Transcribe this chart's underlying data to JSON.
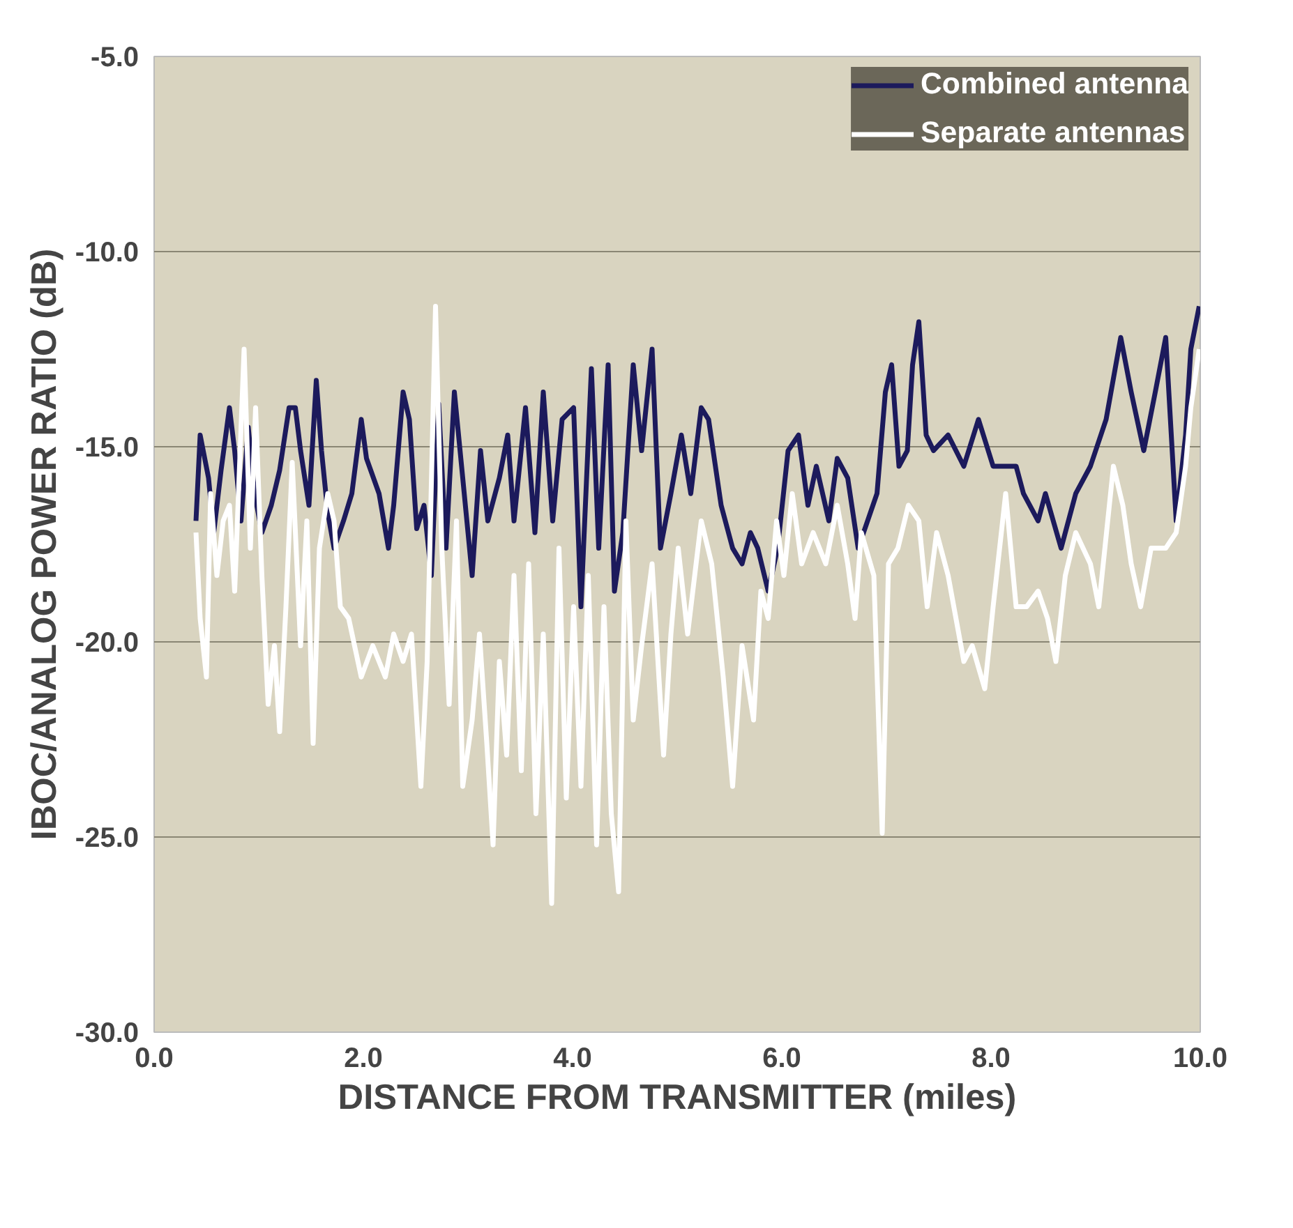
{
  "chart_data": {
    "type": "line",
    "xlabel": "DISTANCE FROM TRANSMITTER (miles)",
    "ylabel": "IBOC/ANALOG POWER RATIO (dB)",
    "xlim": [
      0,
      10
    ],
    "ylim": [
      -30,
      -5
    ],
    "xticks": [
      {
        "value": 0,
        "label": "0.0"
      },
      {
        "value": 2,
        "label": "2.0"
      },
      {
        "value": 4,
        "label": "4.0"
      },
      {
        "value": 6,
        "label": "6.0"
      },
      {
        "value": 8,
        "label": "8.0"
      },
      {
        "value": 10,
        "label": "10.0"
      }
    ],
    "yticks": [
      {
        "value": -30,
        "label": "-30.0"
      },
      {
        "value": -25,
        "label": "-25.0"
      },
      {
        "value": -20,
        "label": "-20.0"
      },
      {
        "value": -15,
        "label": "-15.0"
      },
      {
        "value": -10,
        "label": "-10.0"
      },
      {
        "value": -5,
        "label": "-5.0"
      }
    ],
    "grid": "y",
    "legend": "top right",
    "line_style": "solid",
    "marker": "none",
    "series": [
      {
        "name": "Combined antenna",
        "color": "#1c1a5c",
        "x": [
          0.4,
          0.44,
          0.52,
          0.57,
          0.64,
          0.72,
          0.77,
          0.83,
          0.9,
          0.96,
          1.03,
          1.12,
          1.2,
          1.29,
          1.35,
          1.4,
          1.48,
          1.55,
          1.6,
          1.66,
          1.72,
          1.81,
          1.89,
          1.98,
          2.03,
          2.15,
          2.24,
          2.29,
          2.38,
          2.44,
          2.51,
          2.58,
          2.65,
          2.72,
          2.79,
          2.87,
          2.95,
          3.04,
          3.12,
          3.19,
          3.3,
          3.38,
          3.44,
          3.55,
          3.64,
          3.72,
          3.81,
          3.9,
          4.01,
          4.08,
          4.18,
          4.25,
          4.34,
          4.4,
          4.48,
          4.58,
          4.66,
          4.76,
          4.84,
          4.94,
          5.04,
          5.13,
          5.23,
          5.3,
          5.42,
          5.53,
          5.62,
          5.7,
          5.77,
          5.87,
          5.96,
          6.06,
          6.16,
          6.25,
          6.33,
          6.45,
          6.53,
          6.63,
          6.73,
          6.82,
          6.91,
          6.99,
          7.05,
          7.12,
          7.2,
          7.25,
          7.31,
          7.38,
          7.45,
          7.59,
          7.74,
          7.88,
          8.02,
          8.24,
          8.31,
          8.45,
          8.52,
          8.67,
          8.81,
          8.95,
          9.1,
          9.24,
          9.34,
          9.46,
          9.57,
          9.67,
          9.77,
          9.86,
          9.91,
          9.99
        ],
        "values": [
          -16.9,
          -14.7,
          -15.8,
          -17.2,
          -15.6,
          -14.0,
          -15.1,
          -16.9,
          -14.5,
          -16.2,
          -17.2,
          -16.5,
          -15.6,
          -14.0,
          -14.0,
          -15.1,
          -16.5,
          -13.3,
          -15.1,
          -16.7,
          -17.6,
          -16.9,
          -16.2,
          -14.3,
          -15.3,
          -16.2,
          -17.6,
          -16.5,
          -13.6,
          -14.3,
          -17.1,
          -16.5,
          -18.3,
          -13.9,
          -17.6,
          -13.6,
          -15.8,
          -18.3,
          -15.1,
          -16.9,
          -15.8,
          -14.7,
          -16.9,
          -14.0,
          -17.2,
          -13.6,
          -16.9,
          -14.3,
          -14.0,
          -19.1,
          -13.0,
          -17.6,
          -12.9,
          -18.7,
          -17.2,
          -12.9,
          -15.1,
          -12.5,
          -17.6,
          -16.2,
          -14.7,
          -16.2,
          -14.0,
          -14.3,
          -16.5,
          -17.6,
          -18.0,
          -17.2,
          -17.6,
          -18.7,
          -17.6,
          -15.1,
          -14.7,
          -16.5,
          -15.5,
          -16.9,
          -15.3,
          -15.8,
          -17.6,
          -16.9,
          -16.2,
          -13.6,
          -12.9,
          -15.5,
          -15.1,
          -12.9,
          -11.8,
          -14.7,
          -15.1,
          -14.7,
          -15.5,
          -14.3,
          -15.5,
          -15.5,
          -16.2,
          -16.9,
          -16.2,
          -17.6,
          -16.2,
          -15.5,
          -14.3,
          -12.2,
          -13.6,
          -15.1,
          -13.6,
          -12.2,
          -16.9,
          -14.7,
          -12.5,
          -11.4
        ]
      },
      {
        "name": "Separate antennas",
        "color": "#ffffff",
        "x": [
          0.4,
          0.44,
          0.5,
          0.54,
          0.6,
          0.66,
          0.72,
          0.77,
          0.86,
          0.92,
          0.97,
          1.03,
          1.09,
          1.15,
          1.2,
          1.26,
          1.32,
          1.4,
          1.46,
          1.52,
          1.58,
          1.66,
          1.72,
          1.78,
          1.86,
          1.98,
          2.09,
          2.21,
          2.29,
          2.38,
          2.46,
          2.55,
          2.61,
          2.69,
          2.75,
          2.82,
          2.89,
          2.95,
          3.04,
          3.11,
          3.18,
          3.24,
          3.3,
          3.37,
          3.44,
          3.51,
          3.58,
          3.65,
          3.72,
          3.8,
          3.87,
          3.94,
          4.01,
          4.08,
          4.15,
          4.23,
          4.3,
          4.37,
          4.44,
          4.51,
          4.58,
          4.66,
          4.76,
          4.87,
          4.94,
          5.01,
          5.1,
          5.23,
          5.33,
          5.44,
          5.53,
          5.62,
          5.73,
          5.8,
          5.87,
          5.95,
          6.02,
          6.1,
          6.19,
          6.3,
          6.42,
          6.53,
          6.63,
          6.7,
          6.76,
          6.88,
          6.96,
          7.02,
          7.11,
          7.21,
          7.31,
          7.39,
          7.48,
          7.59,
          7.74,
          7.82,
          7.94,
          8.02,
          8.14,
          8.24,
          8.34,
          8.45,
          8.54,
          8.62,
          8.71,
          8.81,
          8.95,
          9.03,
          9.17,
          9.26,
          9.34,
          9.43,
          9.53,
          9.67,
          9.77,
          9.86,
          9.91,
          9.99
        ],
        "values": [
          -17.2,
          -19.4,
          -20.9,
          -16.2,
          -18.3,
          -16.9,
          -16.5,
          -18.7,
          -12.5,
          -17.6,
          -14.0,
          -18.3,
          -21.6,
          -20.1,
          -22.3,
          -19.1,
          -15.4,
          -20.1,
          -16.9,
          -22.6,
          -17.6,
          -16.2,
          -16.9,
          -19.1,
          -19.4,
          -20.9,
          -20.1,
          -20.9,
          -19.8,
          -20.5,
          -19.8,
          -23.7,
          -20.5,
          -11.4,
          -17.6,
          -21.6,
          -16.9,
          -23.7,
          -22.0,
          -19.8,
          -22.6,
          -25.2,
          -20.5,
          -22.9,
          -18.3,
          -23.3,
          -18.0,
          -24.4,
          -19.8,
          -26.7,
          -17.6,
          -24.0,
          -19.1,
          -23.7,
          -18.3,
          -25.2,
          -19.1,
          -24.4,
          -26.4,
          -16.9,
          -22.0,
          -20.1,
          -18.0,
          -22.9,
          -19.8,
          -17.6,
          -19.8,
          -16.9,
          -18.0,
          -20.9,
          -23.7,
          -20.1,
          -22.0,
          -18.7,
          -19.4,
          -16.9,
          -18.3,
          -16.2,
          -18.0,
          -17.2,
          -18.0,
          -16.5,
          -18.0,
          -19.4,
          -17.2,
          -18.3,
          -24.9,
          -18.0,
          -17.6,
          -16.5,
          -16.9,
          -19.1,
          -17.2,
          -18.3,
          -20.5,
          -20.1,
          -21.2,
          -19.1,
          -16.2,
          -19.1,
          -19.1,
          -18.7,
          -19.4,
          -20.5,
          -18.3,
          -17.2,
          -18.0,
          -19.1,
          -15.5,
          -16.5,
          -18.0,
          -19.1,
          -17.6,
          -17.6,
          -17.2,
          -15.5,
          -14.0,
          -12.5
        ]
      }
    ]
  }
}
